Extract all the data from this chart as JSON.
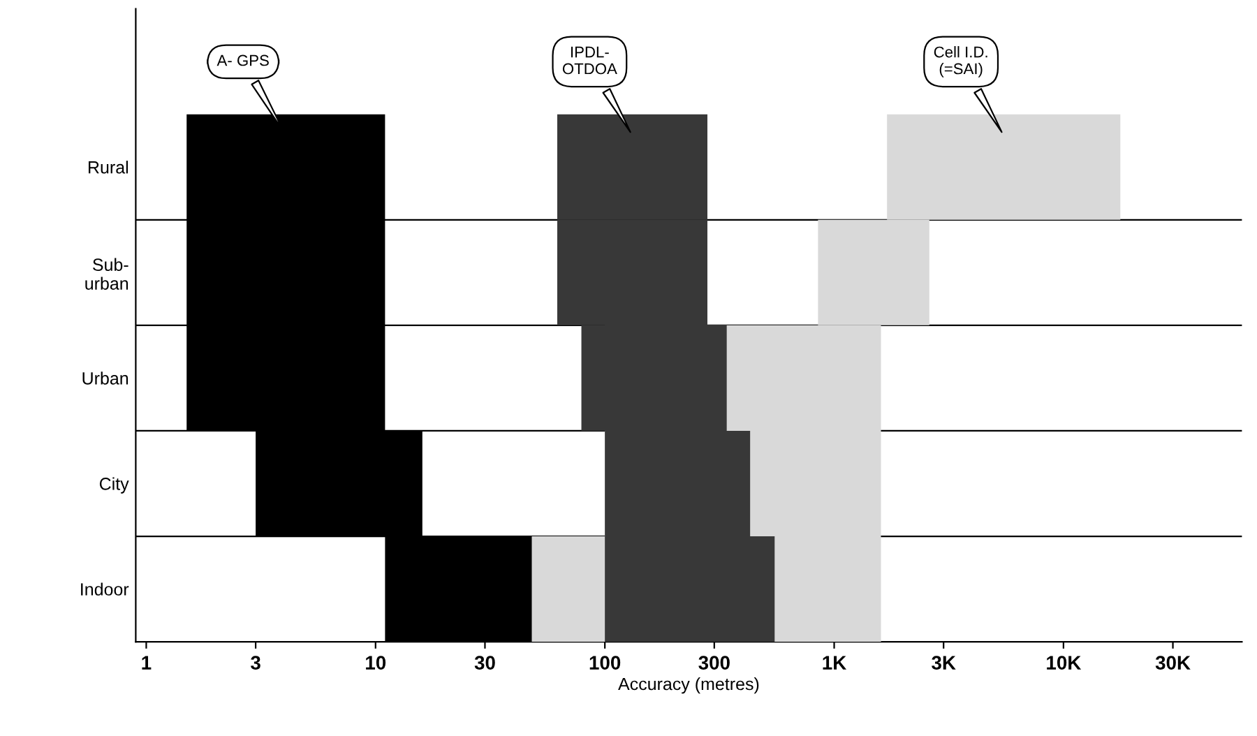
{
  "chart_data": {
    "type": "bar",
    "orientation": "horizontal",
    "xlabel": "Accuracy (metres)",
    "log": "x",
    "categories": [
      "Rural",
      "Sub-\nurban",
      "Urban",
      "City",
      "Indoor"
    ],
    "series": [
      {
        "name": "A- GPS",
        "color": "#000000",
        "base": [
          1.5,
          1.5,
          1.5,
          3,
          11
        ],
        "values": [
          9.5,
          9.5,
          9.5,
          13,
          37
        ]
      },
      {
        "name": "IPDL-\nOTDOA",
        "color": "#383838",
        "base": [
          62,
          62,
          79,
          100,
          100
        ],
        "values": [
          218,
          218,
          261,
          330,
          450
        ]
      },
      {
        "name": "Cell I.D.\n(=SAI)",
        "color": "#d9d9d9",
        "base": [
          1700,
          850,
          100,
          100,
          30
        ],
        "values": [
          16000,
          1750,
          1500,
          1500,
          1570
        ]
      }
    ],
    "xlim": [
      0.9,
      60000
    ],
    "xticks": [
      1,
      3,
      10,
      30,
      100,
      300,
      {
        "value": 1000,
        "label": "1K"
      },
      {
        "value": 3000,
        "label": "3K"
      },
      {
        "value": 10000,
        "label": "10K"
      },
      {
        "value": 30000,
        "label": "30K"
      }
    ],
    "grid": "y",
    "legend": false
  }
}
